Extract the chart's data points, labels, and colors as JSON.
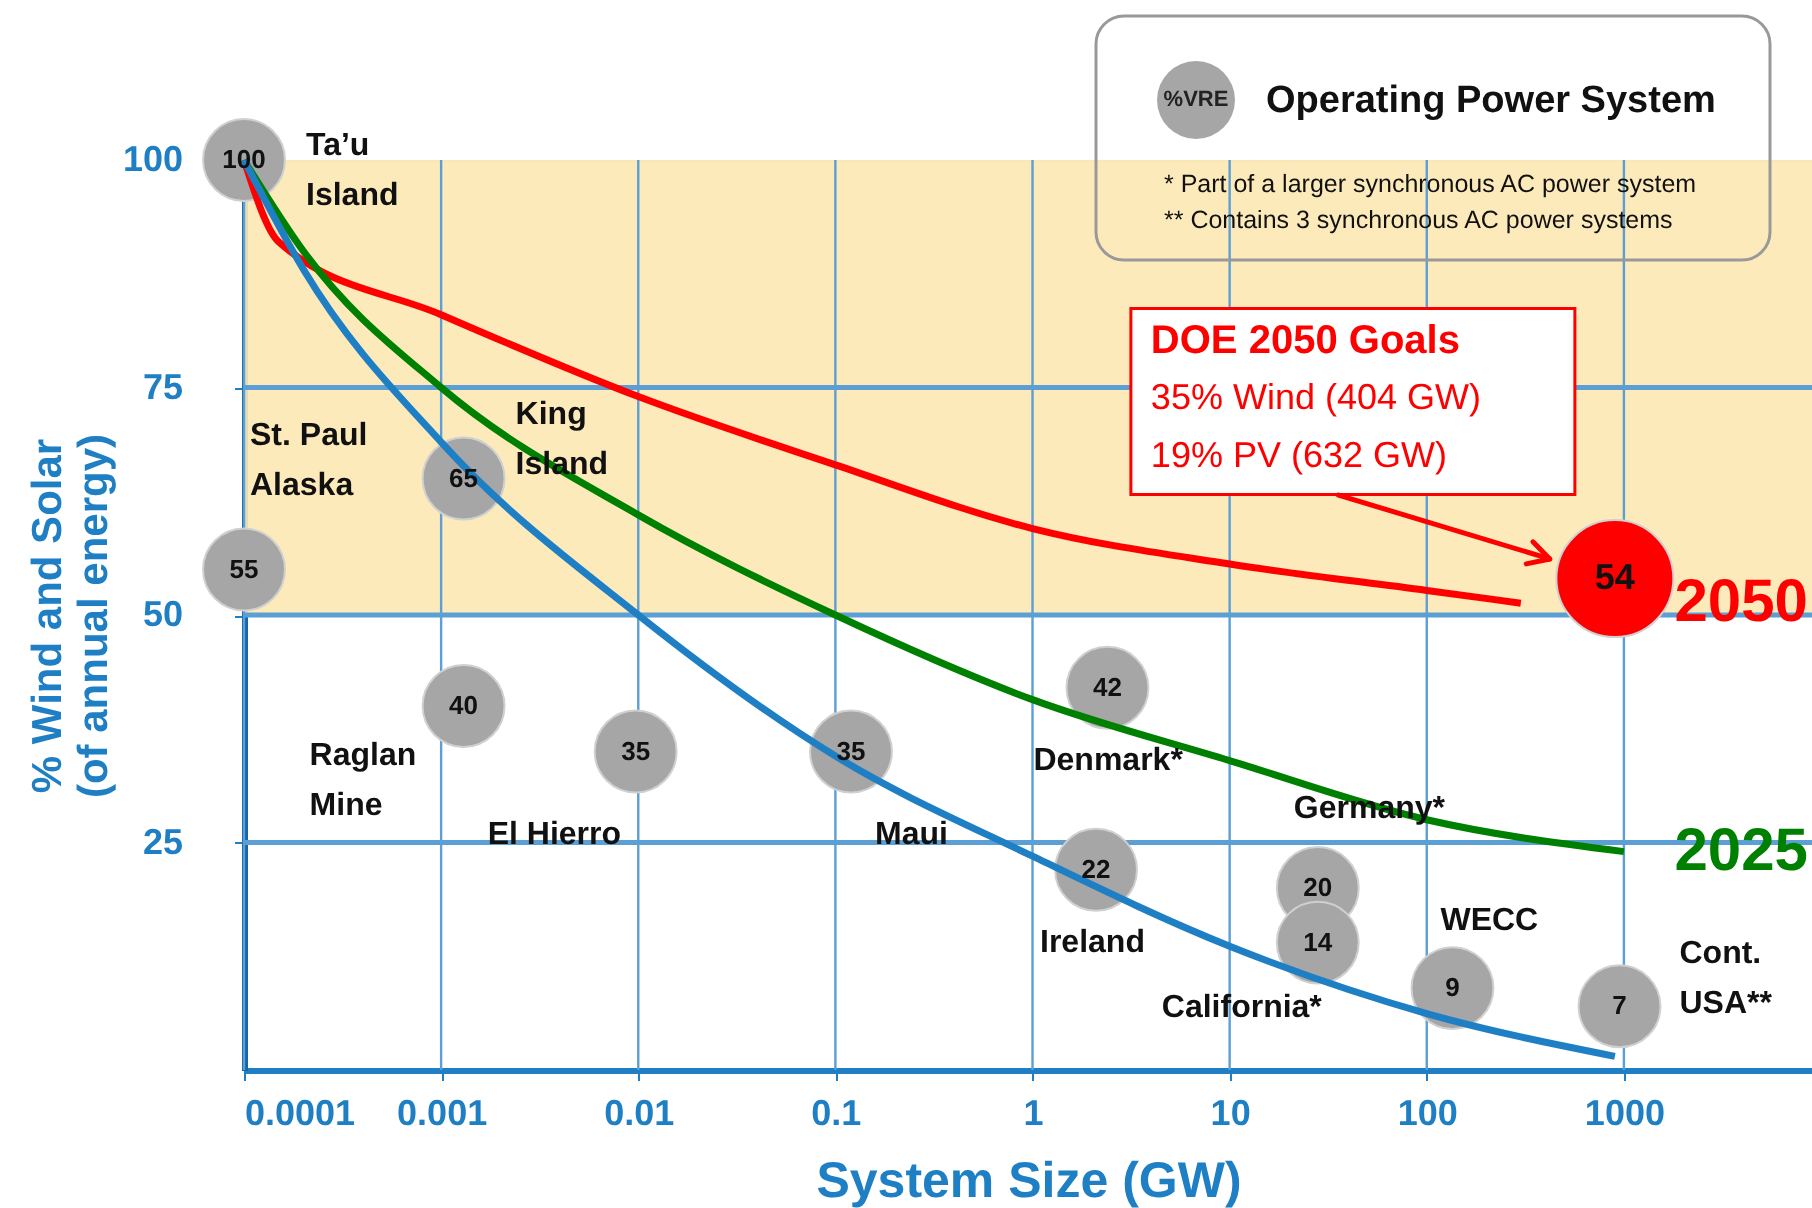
{
  "chart_data": {
    "type": "bubble",
    "xlabel": "System Size (GW)",
    "ylabel": "% Wind and Solar\n(of annual energy)",
    "legend_title": "%VRE",
    "legend": "top right",
    "grid": true,
    "log": "x",
    "xlim": [
      0.0001,
      9000
    ],
    "xticks": [
      0.0001,
      0.001,
      0.01,
      0.1,
      1,
      10,
      100,
      1000
    ],
    "ylim": [
      0,
      100
    ],
    "yticks": [
      25,
      50,
      75,
      100
    ],
    "bands": [
      {
        "axis": "y",
        "from": 50,
        "to": 100,
        "color": "#fde8b4"
      }
    ],
    "series": [
      {
        "name": "2050",
        "type": "line",
        "color": "#ff0000",
        "x": [
          0.0001,
          0.00015,
          0.001,
          0.01,
          0.1,
          1,
          10,
          100,
          300
        ],
        "values": [
          100,
          91,
          83,
          74,
          66.5,
          59.5,
          55.6,
          52.7,
          51.3
        ]
      },
      {
        "name": "2025",
        "type": "line",
        "color": "#008000",
        "x": [
          0.0001,
          0.0002,
          0.001,
          0.01,
          0.1,
          1,
          10,
          100,
          1000
        ],
        "values": [
          100,
          90,
          75,
          61,
          50,
          40.7,
          34,
          27.5,
          24
        ]
      },
      {
        "type": "line",
        "color": "#1f7fc4",
        "x": [
          0.0001,
          0.0002,
          0.001,
          0.01,
          0.1,
          1,
          10,
          100,
          900
        ],
        "values": [
          100,
          88,
          69,
          50,
          34.5,
          23.5,
          13.6,
          6.2,
          1.5
        ]
      },
      {
        "name": "Operating Power System",
        "color": "#a6a6a6",
        "x": [
          0.0001,
          0.0001,
          0.0013,
          0.0013,
          0.0097,
          0.12,
          2.4,
          2.1,
          28,
          28,
          135,
          950
        ],
        "values": [
          100,
          55,
          65,
          40,
          35,
          35,
          42,
          22,
          20,
          14,
          9,
          7
        ],
        "sizes": [
          0.49,
          0.49,
          0.49,
          0.49,
          0.49,
          0.49,
          0.49,
          0.49,
          0.49,
          0.49,
          0.49,
          0.49
        ],
        "value_labels": [
          "100",
          "55",
          "65",
          "40",
          "35",
          "35",
          "42",
          "22",
          "20",
          "14",
          "9",
          "7"
        ]
      },
      {
        "color": "#ff0000",
        "x": [
          900
        ],
        "values": [
          54
        ],
        "sizes": [
          1
        ],
        "value_labels": [
          "54"
        ]
      }
    ],
    "annotations": [
      {
        "text": "Ta’u\nIsland",
        "x": 0.0001,
        "y": 100
      },
      {
        "text": "St. Paul\nAlaska",
        "x": 0.0001,
        "y": 55
      },
      {
        "text": "King\nIsland",
        "x": 0.0013,
        "y": 65
      },
      {
        "text": "Raglan\nMine",
        "x": 0.0013,
        "y": 40
      },
      {
        "text": "El Hierro",
        "x": 0.0097,
        "y": 35
      },
      {
        "text": "Maui",
        "x": 0.12,
        "y": 35
      },
      {
        "text": "Denmark*",
        "x": 2.4,
        "y": 42
      },
      {
        "text": "Germany*",
        "x": 28,
        "y": 20
      },
      {
        "text": "Ireland",
        "x": 2.1,
        "y": 22
      },
      {
        "text": "California*",
        "x": 28,
        "y": 14
      },
      {
        "text": "WECC",
        "x": 135,
        "y": 9
      },
      {
        "text": "Cont.\nUSA**",
        "x": 950,
        "y": 7
      },
      "DOE 2050 Goals\n35% Wind (404 GW)\n19% PV (632 GW)",
      "* Part of a larger synchronous AC power system",
      "** Contains 3 synchronous AC power systems"
    ]
  }
}
